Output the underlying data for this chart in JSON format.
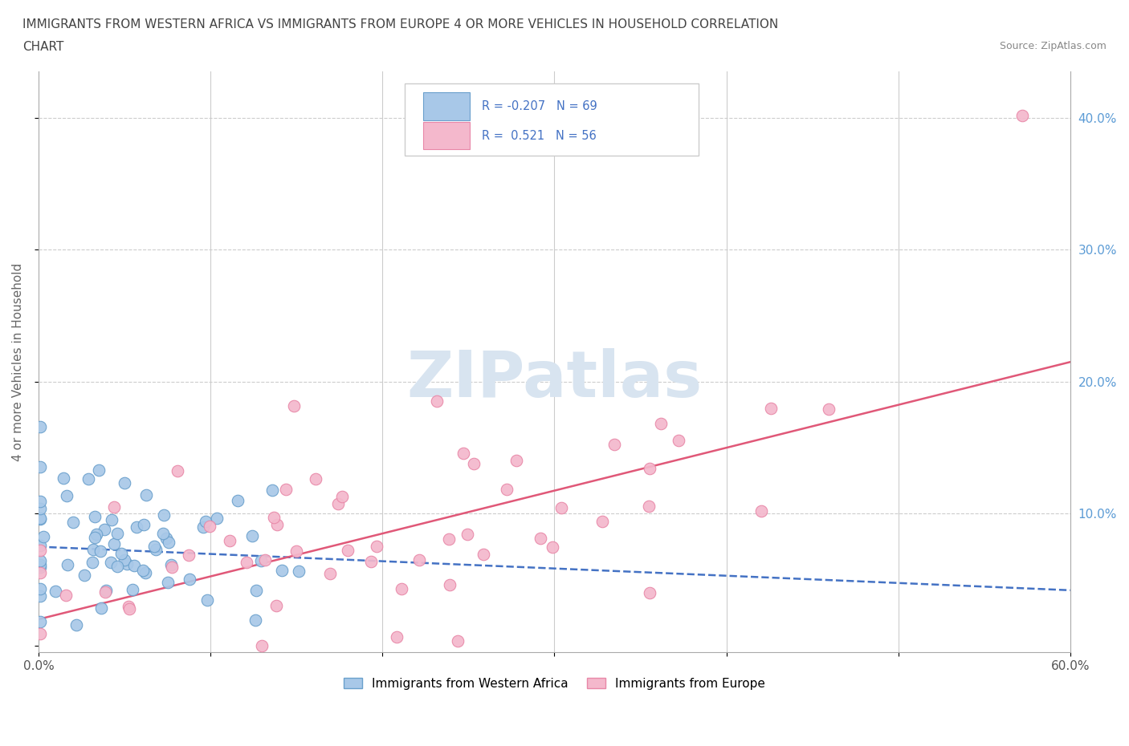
{
  "title_line1": "IMMIGRANTS FROM WESTERN AFRICA VS IMMIGRANTS FROM EUROPE 4 OR MORE VEHICLES IN HOUSEHOLD CORRELATION",
  "title_line2": "CHART",
  "source": "Source: ZipAtlas.com",
  "ylabel_label": "4 or more Vehicles in Household",
  "x_min": 0.0,
  "x_max": 0.6,
  "y_min": -0.005,
  "y_max": 0.435,
  "blue_color": "#a8c8e8",
  "pink_color": "#f4b8cc",
  "blue_edge": "#6aa0cc",
  "pink_edge": "#e888a8",
  "blue_line_color": "#4472c4",
  "pink_line_color": "#e05878",
  "watermark": "ZIPatlas",
  "watermark_color": "#d8e4f0",
  "grid_color": "#cccccc",
  "axis_color": "#aaaaaa",
  "right_tick_color": "#5b9bd5",
  "title_color": "#444444",
  "source_color": "#888888",
  "legend_text_color": "#4472c4"
}
